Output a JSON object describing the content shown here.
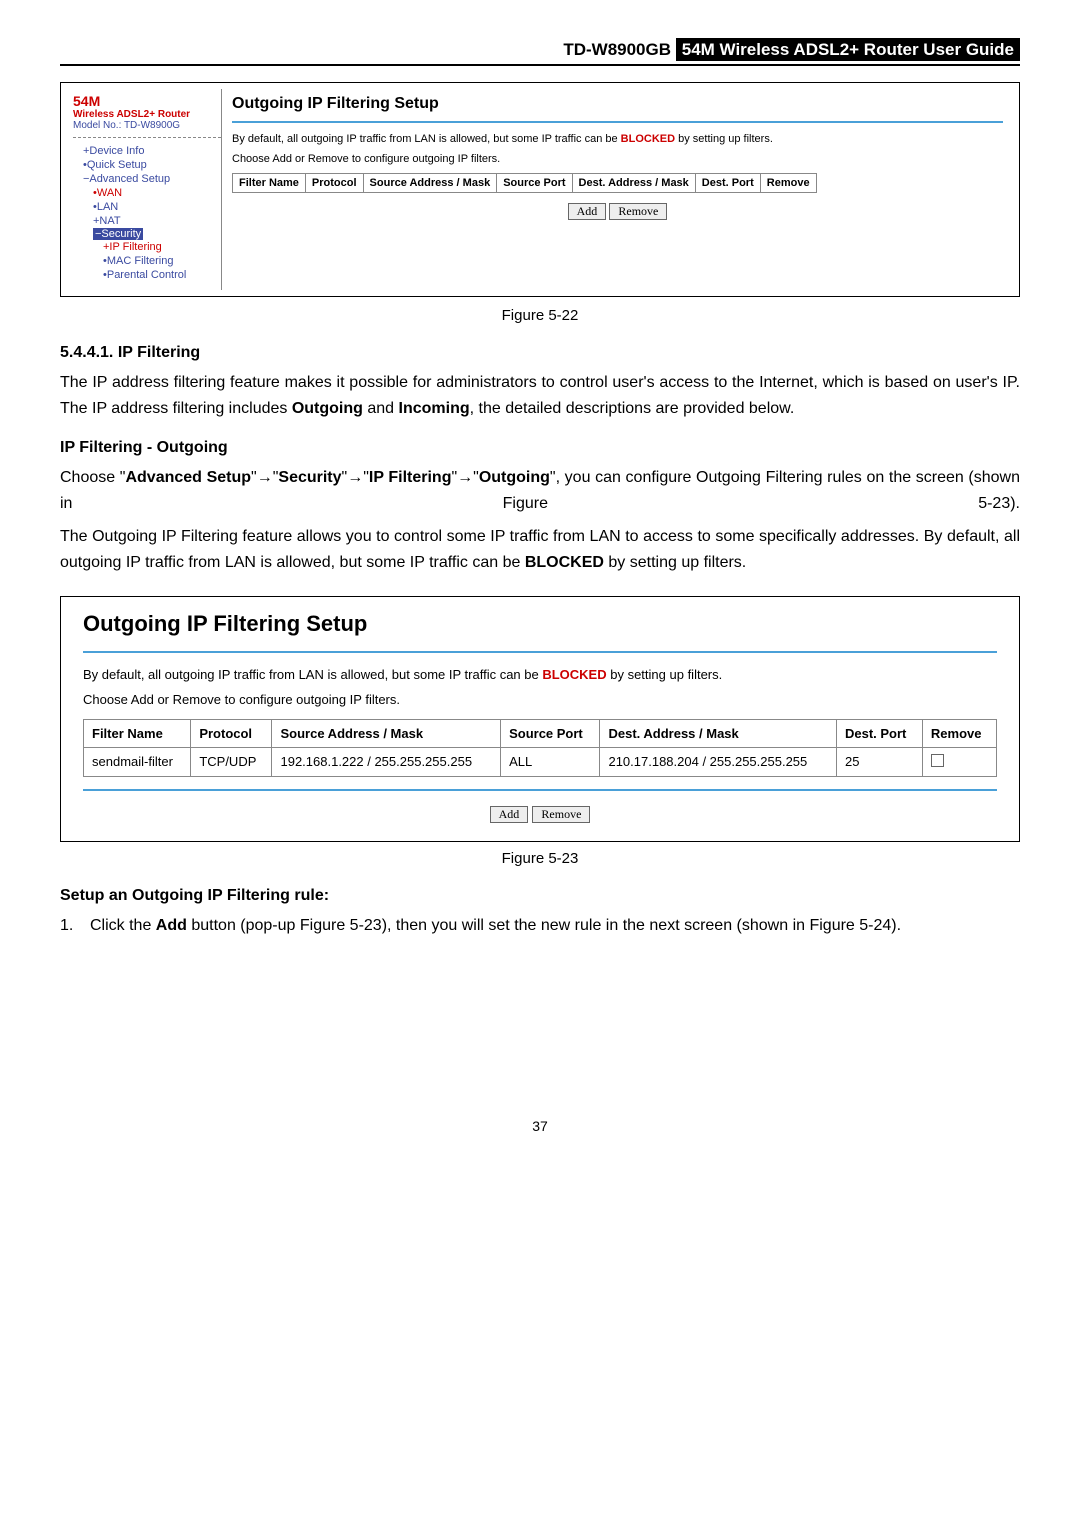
{
  "header": {
    "model": "TD-W8900GB",
    "title": "54M Wireless ADSL2+ Router User Guide"
  },
  "shot1": {
    "brand": "54M",
    "brand_sub": "Wireless ADSL2+ Router",
    "brand_model": "Model No.: TD-W8900G",
    "nav": {
      "device_info": "+Device Info",
      "quick_setup": "•Quick Setup",
      "adv_setup": "−Advanced Setup",
      "wan": "•WAN",
      "lan": "•LAN",
      "nat": "+NAT",
      "security": "−Security",
      "ip_filtering": "+IP Filtering",
      "mac_filtering": "•MAC Filtering",
      "parental": "•Parental Control"
    },
    "main_title": "Outgoing IP Filtering Setup",
    "desc1_pre": "By default, all outgoing IP traffic from LAN is allowed, but some IP traffic can be ",
    "blocked": "BLOCKED",
    "desc1_post": " by setting up filters.",
    "desc2": "Choose Add or Remove to configure outgoing IP filters.",
    "table_headers": {
      "filter_name": "Filter Name",
      "protocol": "Protocol",
      "src_addr": "Source Address / Mask",
      "src_port": "Source Port",
      "dst_addr": "Dest. Address / Mask",
      "dst_port": "Dest. Port",
      "remove": "Remove"
    },
    "btn_add": "Add",
    "btn_remove": "Remove"
  },
  "fig1_caption": "Figure 5-22",
  "section": {
    "heading1": "5.4.4.1.  IP Filtering",
    "para1_a": "The IP address filtering feature makes it possible for administrators to control user's access to the Internet, which is based on user's IP. The IP address filtering includes ",
    "para1_bold1": "Outgoing",
    "para1_mid": " and ",
    "para1_bold2": "Incoming",
    "para1_c": ", the detailed descriptions are provided below.",
    "heading2": "IP Filtering - Outgoing",
    "para2_a": "Choose \"",
    "para2_b1": "Advanced Setup",
    "para2_b2": "Security",
    "para2_b3": "IP Filtering",
    "para2_b4": "Outgoing",
    "para2_c": "\", you can configure Outgoing Filtering rules on the screen (shown in Figure 5-23).",
    "para3_a": "The Outgoing IP Filtering feature allows you to control some IP traffic from LAN to access to some specifically addresses. By default, all outgoing IP traffic from LAN is allowed, but some IP traffic can be ",
    "para3_bold": "BLOCKED",
    "para3_c": " by setting up filters."
  },
  "shot2": {
    "title": "Outgoing IP Filtering Setup",
    "desc1_pre": "By default, all outgoing IP traffic from LAN is allowed, but some IP traffic can be ",
    "blocked": "BLOCKED",
    "desc1_post": " by setting up filters.",
    "desc2": "Choose Add or Remove to configure outgoing IP filters.",
    "headers": {
      "filter_name": "Filter Name",
      "protocol": "Protocol",
      "src_addr": "Source Address / Mask",
      "src_port": "Source Port",
      "dst_addr": "Dest. Address / Mask",
      "dst_port": "Dest. Port",
      "remove": "Remove"
    },
    "row": {
      "filter_name": "sendmail-filter",
      "protocol": "TCP/UDP",
      "src_addr": "192.168.1.222 / 255.255.255.255",
      "src_port": "ALL",
      "dst_addr": "210.17.188.204 / 255.255.255.255",
      "dst_port": "25"
    },
    "btn_add": "Add",
    "btn_remove": "Remove"
  },
  "fig2_caption": "Figure 5-23",
  "setup_heading": "Setup an Outgoing IP Filtering rule:",
  "step1_num": "1.",
  "step1_a": "Click the ",
  "step1_bold": "Add",
  "step1_b": " button (pop-up Figure 5-23), then you will set the new rule in the next screen (shown in Figure 5-24).",
  "page_num": "37"
}
